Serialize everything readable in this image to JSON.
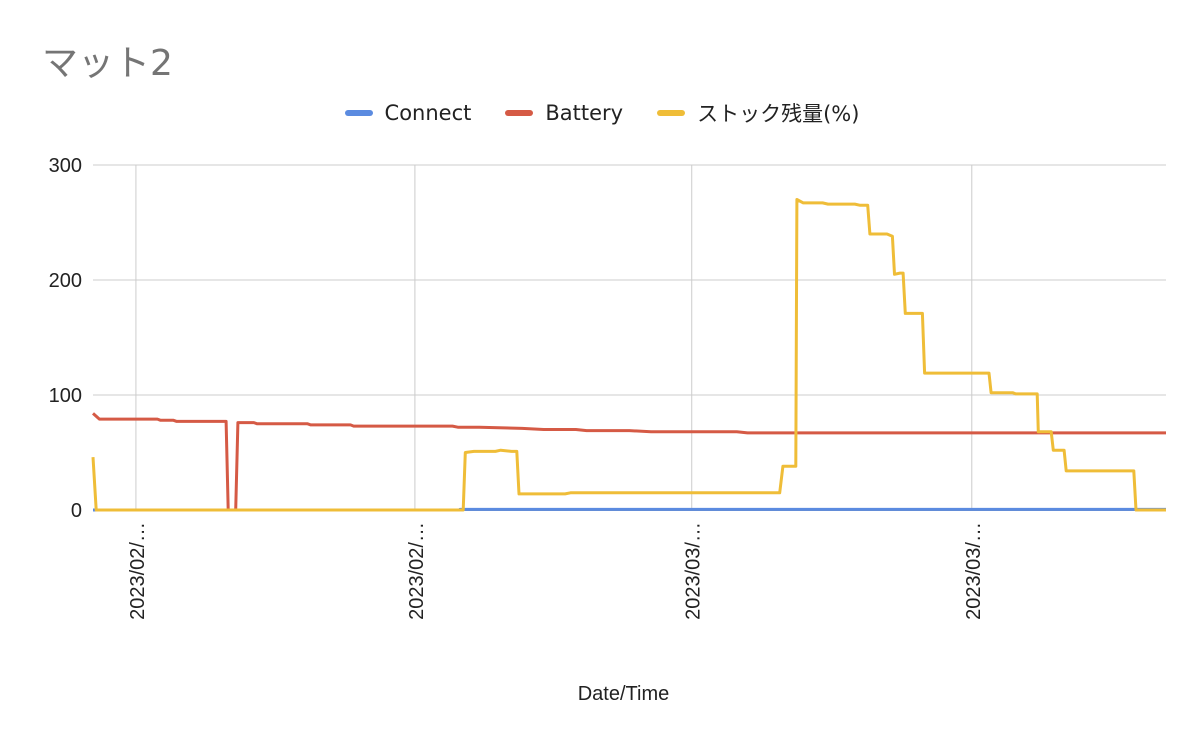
{
  "chart_data": {
    "type": "line",
    "title": "マット2",
    "xlabel": "Date/Time",
    "ylabel": "",
    "ylim": [
      0,
      300
    ],
    "y_ticks": [
      "0",
      "100",
      "200",
      "300"
    ],
    "x_tick_labels": [
      "2023/02/…",
      "2023/02/…",
      "2023/03/…",
      "2023/03/…"
    ],
    "x_range": [
      0,
      100
    ],
    "x_tick_positions": [
      4,
      30,
      55.8,
      81.9
    ],
    "grid": true,
    "legend_position": "top",
    "series": [
      {
        "name": "Connect",
        "color": "#5b8be0",
        "points": [
          [
            0,
            0
          ],
          [
            34.2,
            0
          ],
          [
            34.2,
            0.5
          ],
          [
            100,
            0.5
          ]
        ]
      },
      {
        "name": "Battery",
        "color": "#d55a45",
        "points": [
          [
            0,
            84
          ],
          [
            0.6,
            79
          ],
          [
            6,
            79
          ],
          [
            6.3,
            78
          ],
          [
            7.5,
            78
          ],
          [
            7.8,
            77
          ],
          [
            12.4,
            77
          ],
          [
            12.6,
            0
          ],
          [
            13.3,
            0
          ],
          [
            13.5,
            76
          ],
          [
            15,
            76
          ],
          [
            15.3,
            75
          ],
          [
            20,
            75
          ],
          [
            20.3,
            74
          ],
          [
            24,
            74
          ],
          [
            24.3,
            73
          ],
          [
            33.5,
            73
          ],
          [
            34,
            72
          ],
          [
            36,
            72
          ],
          [
            40,
            71
          ],
          [
            42,
            70
          ],
          [
            45,
            70
          ],
          [
            46,
            69
          ],
          [
            50,
            69
          ],
          [
            52,
            68
          ],
          [
            60,
            68
          ],
          [
            61,
            67
          ],
          [
            100,
            67
          ]
        ]
      },
      {
        "name": "ストック残量(%)",
        "color": "#efbd38",
        "points": [
          [
            0,
            46
          ],
          [
            0.3,
            0
          ],
          [
            34.5,
            0
          ],
          [
            34.7,
            50
          ],
          [
            35.5,
            51
          ],
          [
            37.5,
            51
          ],
          [
            38,
            52
          ],
          [
            39,
            51
          ],
          [
            39.5,
            51
          ],
          [
            39.7,
            14
          ],
          [
            44,
            14
          ],
          [
            44.5,
            15
          ],
          [
            56,
            15
          ],
          [
            64,
            15
          ],
          [
            64.3,
            38
          ],
          [
            65.5,
            38
          ],
          [
            65.6,
            270
          ],
          [
            66.2,
            267
          ],
          [
            68,
            267
          ],
          [
            68.5,
            266
          ],
          [
            71,
            266
          ],
          [
            71.5,
            265
          ],
          [
            72.2,
            265
          ],
          [
            72.4,
            240
          ],
          [
            74,
            240
          ],
          [
            74.5,
            238
          ],
          [
            74.7,
            205
          ],
          [
            75.2,
            206
          ],
          [
            75.5,
            206
          ],
          [
            75.7,
            171
          ],
          [
            77.3,
            171
          ],
          [
            77.5,
            119
          ],
          [
            83.5,
            119
          ],
          [
            83.7,
            102
          ],
          [
            85.7,
            102
          ],
          [
            86,
            101
          ],
          [
            88,
            101
          ],
          [
            88.1,
            68
          ],
          [
            89.3,
            68
          ],
          [
            89.5,
            52
          ],
          [
            90.5,
            52
          ],
          [
            90.7,
            34
          ],
          [
            97,
            34
          ],
          [
            97.2,
            0
          ],
          [
            100,
            0
          ]
        ]
      }
    ]
  }
}
